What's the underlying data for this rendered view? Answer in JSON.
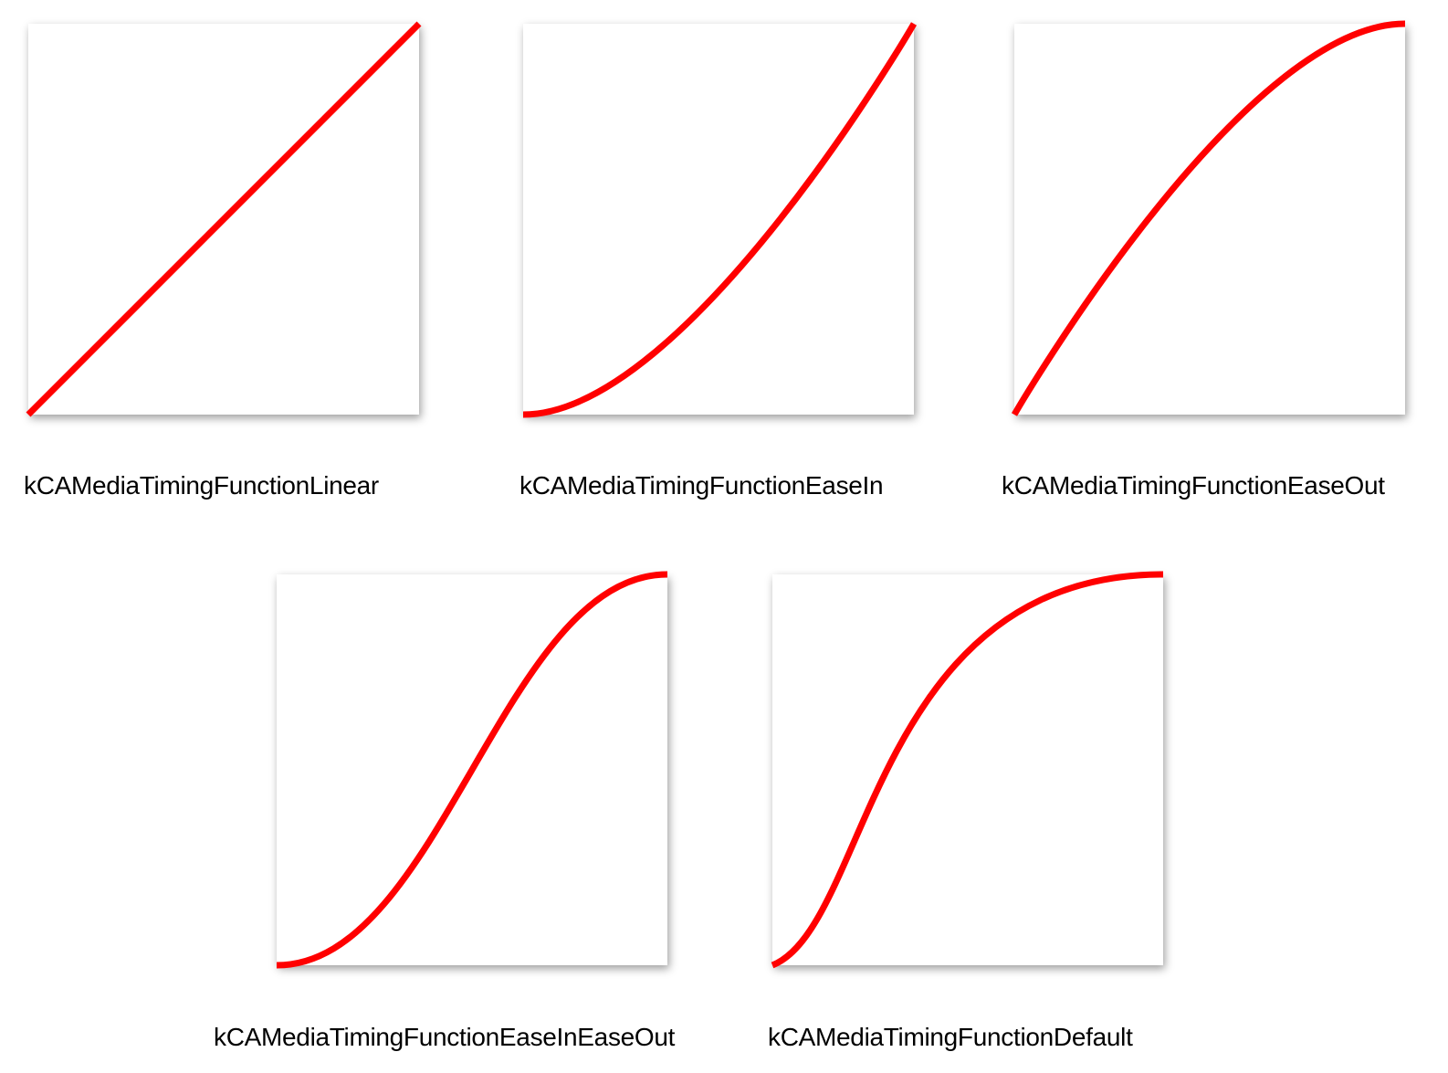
{
  "curve_color": "#ff0000",
  "chart_data": [
    {
      "type": "line",
      "title": "kCAMediaTimingFunctionLinear",
      "bezier_control_points": [
        0.0,
        0.0,
        1.0,
        1.0
      ],
      "xlim": [
        0,
        1
      ],
      "ylim": [
        0,
        1
      ],
      "grid": false
    },
    {
      "type": "line",
      "title": "kCAMediaTimingFunctionEaseIn",
      "bezier_control_points": [
        0.42,
        0.0,
        1.0,
        1.0
      ],
      "xlim": [
        0,
        1
      ],
      "ylim": [
        0,
        1
      ],
      "grid": false
    },
    {
      "type": "line",
      "title": "kCAMediaTimingFunctionEaseOut",
      "bezier_control_points": [
        0.0,
        0.0,
        0.58,
        1.0
      ],
      "xlim": [
        0,
        1
      ],
      "ylim": [
        0,
        1
      ],
      "grid": false
    },
    {
      "type": "line",
      "title": "kCAMediaTimingFunctionEaseInEaseOut",
      "bezier_control_points": [
        0.42,
        0.0,
        0.58,
        1.0
      ],
      "xlim": [
        0,
        1
      ],
      "ylim": [
        0,
        1
      ],
      "grid": false
    },
    {
      "type": "line",
      "title": "kCAMediaTimingFunctionDefault",
      "bezier_control_points": [
        0.25,
        0.1,
        0.25,
        1.0
      ],
      "xlim": [
        0,
        1
      ],
      "ylim": [
        0,
        1
      ],
      "grid": false
    }
  ]
}
